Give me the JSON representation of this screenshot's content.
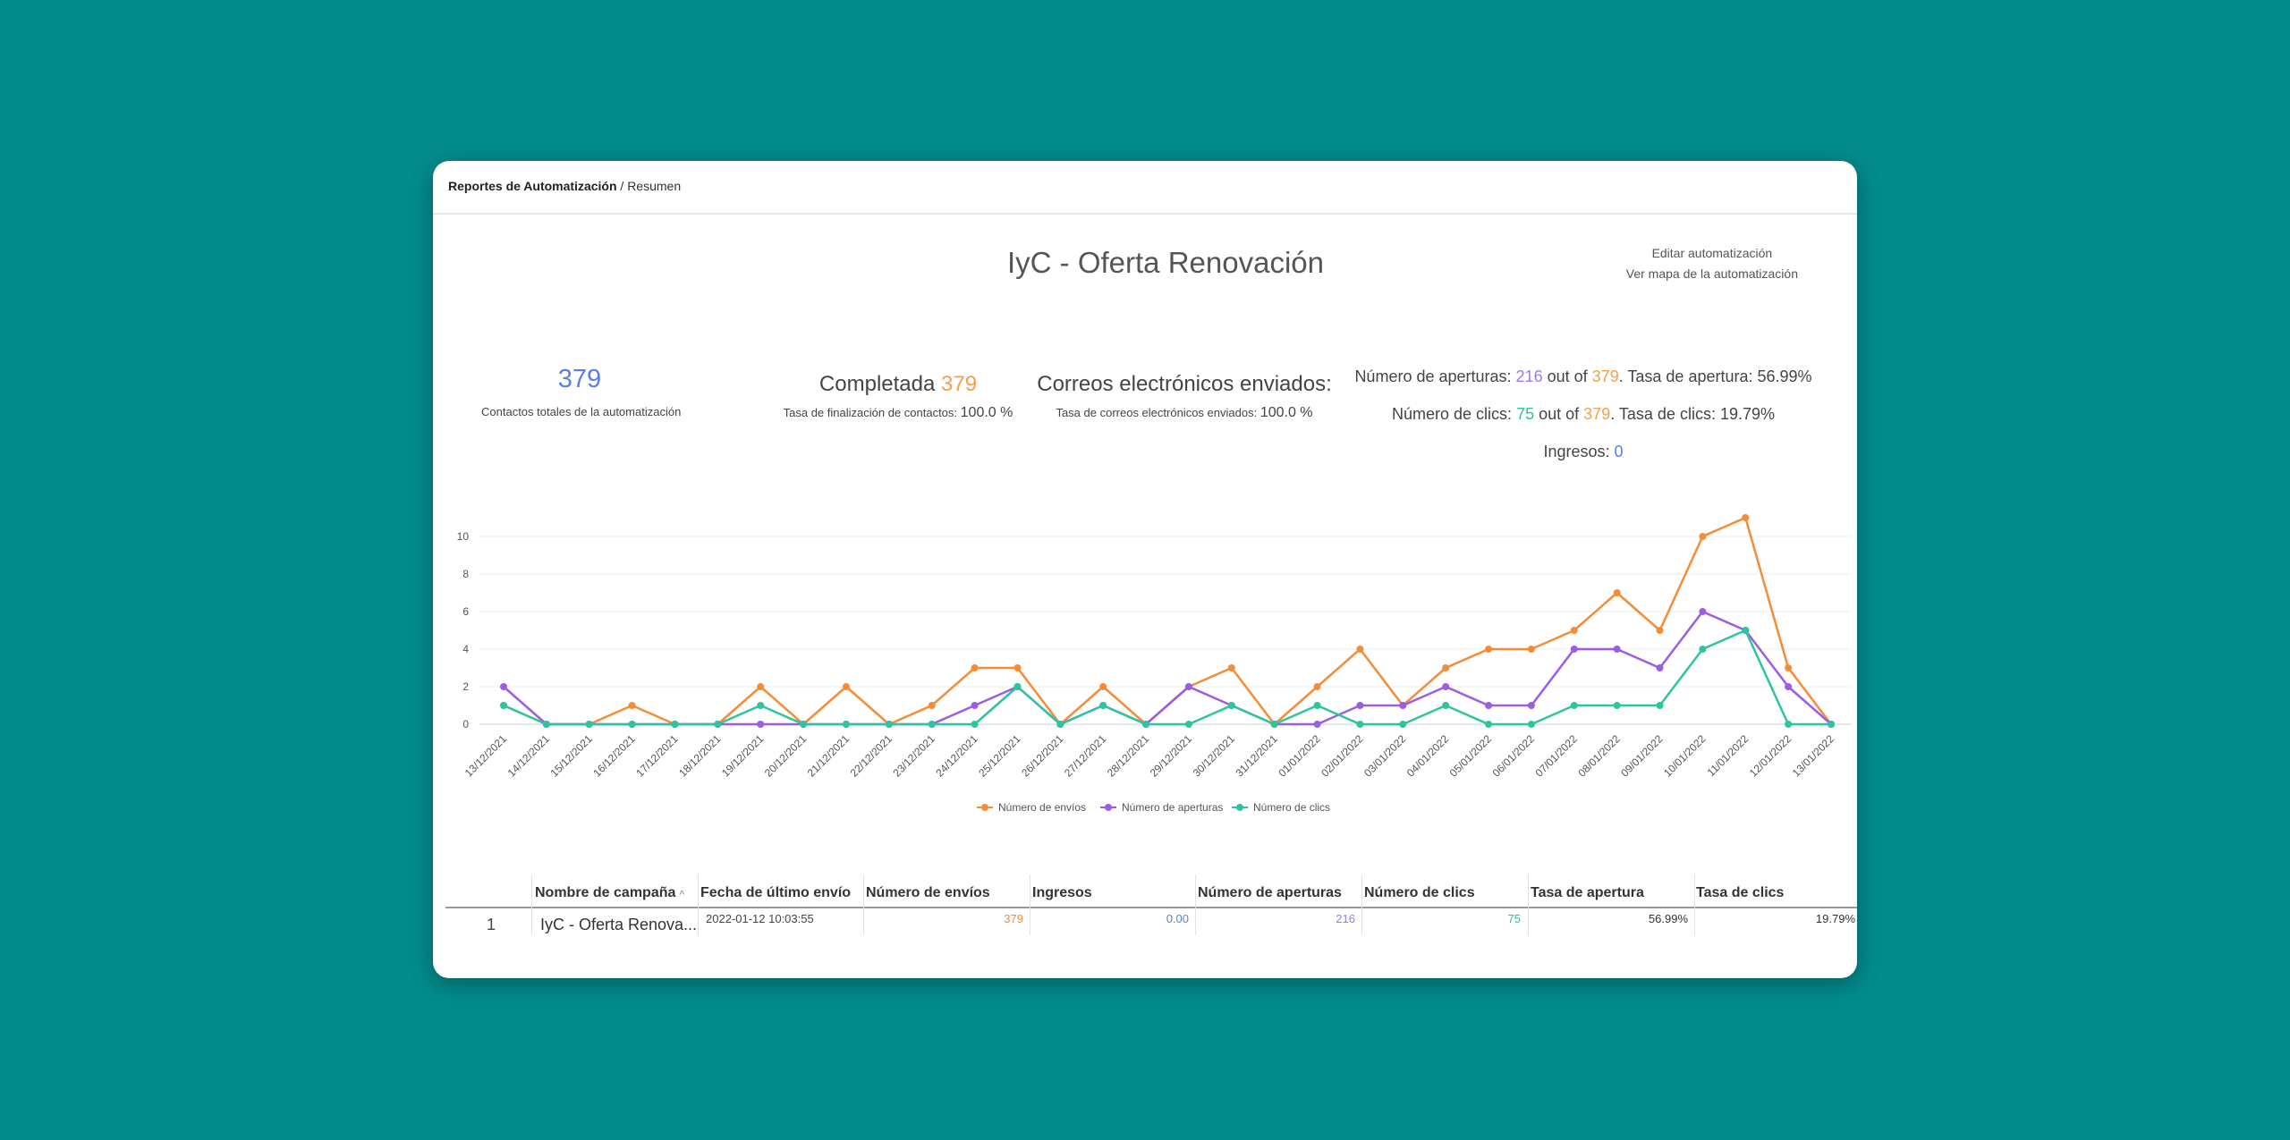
{
  "breadcrumb": {
    "parent": "Reportes de Automatización",
    "separator": " / ",
    "current": "Resumen"
  },
  "title": "IyC - Oferta Renovación",
  "links": {
    "edit": "Editar automatización",
    "map": "Ver mapa de la automatización"
  },
  "stats": {
    "total_contacts": {
      "value": "379",
      "label": "Contactos totales de la automatización"
    },
    "completed": {
      "label": "Completada",
      "value": "379",
      "rate_label": "Tasa de finalización de contactos:",
      "rate": "100.0 %"
    },
    "emails": {
      "label": "Correos electrónicos enviados:",
      "rate_label": "Tasa de correos electrónicos enviados:",
      "rate": "100.0 %"
    },
    "opens": {
      "label": "Número de aperturas:",
      "value": "216",
      "out_of": "out of",
      "total": "379",
      "rate_label": ". Tasa de apertura: 56.99%"
    },
    "clicks": {
      "label": "Número de clics:",
      "value": "75",
      "out_of": "out of",
      "total": "379",
      "rate_label": ". Tasa de clics: 19.79%"
    },
    "revenue": {
      "label": "Ingresos:",
      "value": "0"
    }
  },
  "colors": {
    "sends": "#f58c38",
    "opens": "#9b5de5",
    "clicks": "#2ec4a0"
  },
  "chart_data": {
    "type": "line",
    "x": [
      "13/12/2021",
      "14/12/2021",
      "15/12/2021",
      "16/12/2021",
      "17/12/2021",
      "18/12/2021",
      "19/12/2021",
      "20/12/2021",
      "21/12/2021",
      "22/12/2021",
      "23/12/2021",
      "24/12/2021",
      "25/12/2021",
      "26/12/2021",
      "27/12/2021",
      "28/12/2021",
      "29/12/2021",
      "30/12/2021",
      "31/12/2021",
      "01/01/2022",
      "02/01/2022",
      "03/01/2022",
      "04/01/2022",
      "05/01/2022",
      "06/01/2022",
      "07/01/2022",
      "08/01/2022",
      "09/01/2022",
      "10/01/2022",
      "11/01/2022",
      "12/01/2022",
      "13/01/2022"
    ],
    "series": [
      {
        "name": "Número de envíos",
        "values": [
          1,
          0,
          0,
          1,
          0,
          0,
          2,
          0,
          2,
          0,
          1,
          3,
          3,
          0,
          2,
          0,
          2,
          3,
          0,
          2,
          4,
          1,
          3,
          4,
          4,
          5,
          7,
          5,
          10,
          11,
          3,
          0
        ]
      },
      {
        "name": "Número de aperturas",
        "values": [
          2,
          0,
          0,
          0,
          0,
          0,
          0,
          0,
          0,
          0,
          0,
          1,
          2,
          0,
          1,
          0,
          2,
          1,
          0,
          0,
          1,
          1,
          2,
          1,
          1,
          4,
          4,
          3,
          6,
          5,
          2,
          0
        ]
      },
      {
        "name": "Número de clics",
        "values": [
          1,
          0,
          0,
          0,
          0,
          0,
          1,
          0,
          0,
          0,
          0,
          0,
          2,
          0,
          1,
          0,
          0,
          1,
          0,
          1,
          0,
          0,
          1,
          0,
          0,
          1,
          1,
          1,
          4,
          5,
          0,
          0
        ]
      }
    ],
    "yticks": [
      0,
      2,
      4,
      6,
      8,
      10
    ],
    "ylim": [
      0,
      11
    ],
    "legend": "bottom",
    "grid": true
  },
  "table": {
    "headers": [
      "Nombre de campaña",
      "Fecha de último envío",
      "Número de envíos",
      "Ingresos",
      "Número de aperturas",
      "Número de clics",
      "Tasa de apertura",
      "Tasa de clics"
    ],
    "sort_icon": "^",
    "rows": [
      {
        "index": "1",
        "name": "IyC - Oferta Renova...",
        "date": "2022-01-12 10:03:55",
        "sends": "379",
        "revenue": "0.00",
        "opens": "216",
        "clicks": "75",
        "open_rate": "56.99%",
        "click_rate": "19.79%"
      }
    ]
  }
}
